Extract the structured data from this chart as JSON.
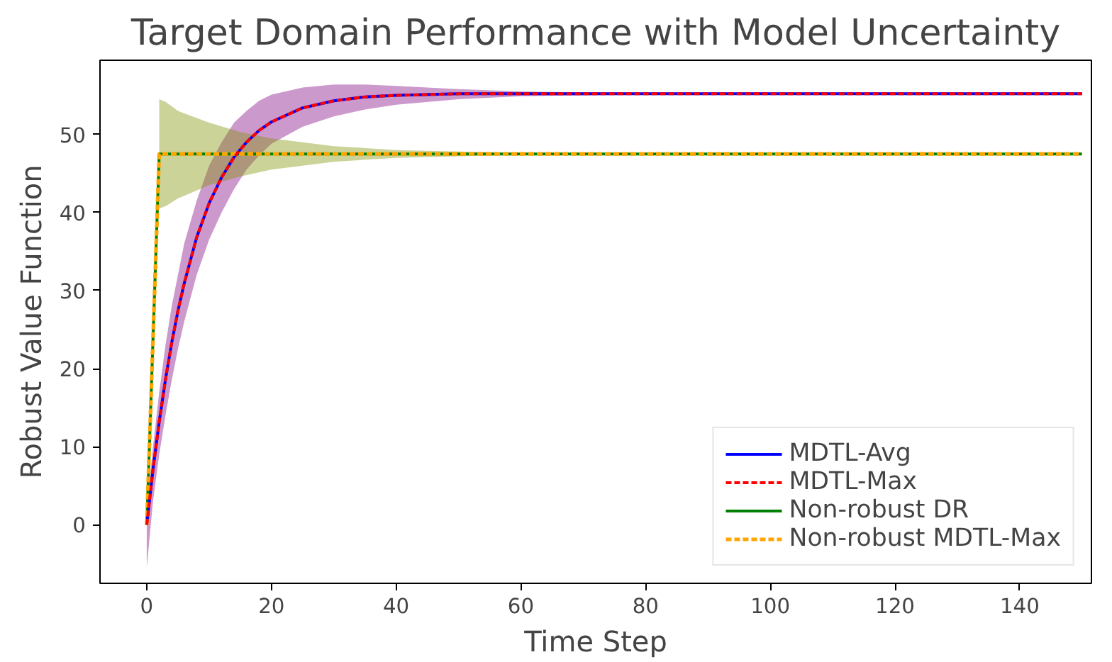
{
  "chart_data": {
    "type": "line",
    "title": "Target Domain Performance with Model Uncertainty",
    "xlabel": "Time Step",
    "ylabel": "Robust Value Function",
    "xlim": [
      -7.5,
      151.5
    ],
    "ylim": [
      -7.5,
      59.5
    ],
    "xticks": [
      0,
      20,
      40,
      60,
      80,
      100,
      120,
      140
    ],
    "yticks": [
      0,
      10,
      20,
      30,
      40,
      50
    ],
    "grid": false,
    "legend": "bottom right",
    "series": [
      {
        "name": "MDTL-Avg",
        "color": "#0000ff",
        "line_style": "solid",
        "x": [
          0,
          1,
          2,
          3,
          4,
          5,
          6,
          8,
          10,
          12,
          14,
          16,
          18,
          20,
          25,
          30,
          35,
          40,
          50,
          60,
          80,
          100,
          150
        ],
        "values": [
          0,
          7.1,
          13.2,
          18.6,
          23.3,
          27.4,
          30.9,
          36.8,
          41.2,
          44.5,
          47.1,
          49.0,
          50.5,
          51.6,
          53.4,
          54.3,
          54.8,
          55.0,
          55.2,
          55.2,
          55.2,
          55.2,
          55.2
        ],
        "lower": [
          -5.5,
          3,
          9,
          14,
          18.5,
          22.5,
          26,
          32,
          36.5,
          40,
          43,
          45.5,
          47.3,
          48.8,
          51,
          52.3,
          53.2,
          53.8,
          54.5,
          54.9,
          55.1,
          55.2,
          55.2
        ],
        "upper": [
          2,
          10,
          17,
          23,
          28,
          32,
          36,
          41.5,
          46,
          49,
          51.5,
          53,
          54.3,
          55.1,
          56,
          56.4,
          56.4,
          56.2,
          55.8,
          55.5,
          55.3,
          55.2,
          55.2
        ]
      },
      {
        "name": "MDTL-Max",
        "color": "#ff0000",
        "line_style": "dashed",
        "x": [
          0,
          1,
          2,
          3,
          4,
          5,
          6,
          8,
          10,
          12,
          14,
          16,
          18,
          20,
          25,
          30,
          35,
          40,
          50,
          60,
          80,
          100,
          150
        ],
        "values": [
          0,
          7.1,
          13.2,
          18.6,
          23.3,
          27.4,
          30.9,
          36.8,
          41.2,
          44.5,
          47.1,
          49.0,
          50.5,
          51.6,
          53.4,
          54.3,
          54.8,
          55.0,
          55.2,
          55.2,
          55.2,
          55.2,
          55.2
        ]
      },
      {
        "name": "Non-robust DR",
        "color": "#008000",
        "line_style": "solid",
        "x": [
          0,
          2,
          3,
          5,
          10,
          15,
          20,
          30,
          40,
          50,
          60,
          80,
          150
        ],
        "values": [
          0,
          47.5,
          47.5,
          47.5,
          47.5,
          47.5,
          47.5,
          47.5,
          47.5,
          47.5,
          47.5,
          47.5,
          47.5
        ],
        "lower": [
          null,
          40.5,
          40.8,
          41.8,
          43.5,
          44.6,
          45.5,
          46.5,
          47,
          47.2,
          47.4,
          47.5,
          47.5
        ],
        "upper": [
          null,
          54.5,
          54.2,
          53,
          51.5,
          50.3,
          49.5,
          48.5,
          48,
          47.8,
          47.6,
          47.5,
          47.5
        ]
      },
      {
        "name": "Non-robust MDTL-Max",
        "color": "#ffa500",
        "line_style": "dashed",
        "x": [
          0,
          2,
          3,
          5,
          10,
          15,
          20,
          30,
          40,
          50,
          60,
          80,
          150
        ],
        "values": [
          0,
          47.5,
          47.5,
          47.5,
          47.5,
          47.5,
          47.5,
          47.5,
          47.5,
          47.5,
          47.5,
          47.5,
          47.5
        ]
      }
    ]
  }
}
